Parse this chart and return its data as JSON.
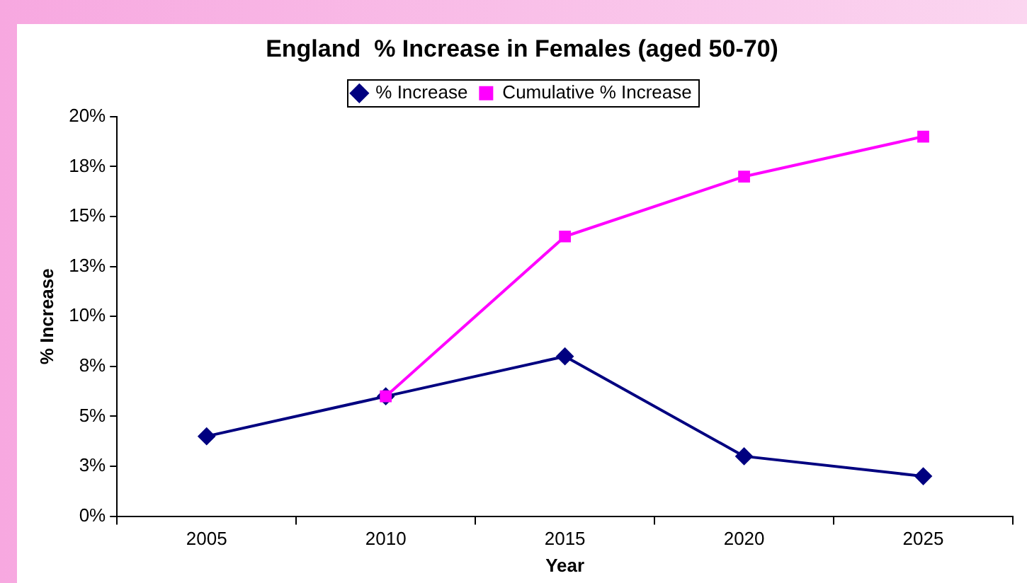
{
  "chart_data": {
    "type": "line",
    "title": "England  % Increase in Females (aged 50-70)",
    "xlabel": "Year",
    "ylabel": "% Increase",
    "categories": [
      "2005",
      "2010",
      "2015",
      "2020",
      "2025"
    ],
    "series": [
      {
        "name": "% Increase",
        "color": "#000080",
        "marker": "diamond",
        "values": [
          4.0,
          6.0,
          8.0,
          3.0,
          2.0
        ]
      },
      {
        "name": "Cumulative % Increase",
        "color": "#ff00ff",
        "marker": "square",
        "values": [
          null,
          6.0,
          14.0,
          17.0,
          19.0
        ]
      }
    ],
    "ylim": [
      0,
      20
    ],
    "yticks": [
      {
        "value": 0,
        "label": "0%"
      },
      {
        "value": 2.5,
        "label": "3%"
      },
      {
        "value": 5,
        "label": "5%"
      },
      {
        "value": 7.5,
        "label": "8%"
      },
      {
        "value": 10,
        "label": "10%"
      },
      {
        "value": 12.5,
        "label": "13%"
      },
      {
        "value": 15,
        "label": "15%"
      },
      {
        "value": 17.5,
        "label": "18%"
      },
      {
        "value": 20,
        "label": "20%"
      }
    ],
    "grid": false,
    "legend": "top",
    "line_style": "solid"
  }
}
